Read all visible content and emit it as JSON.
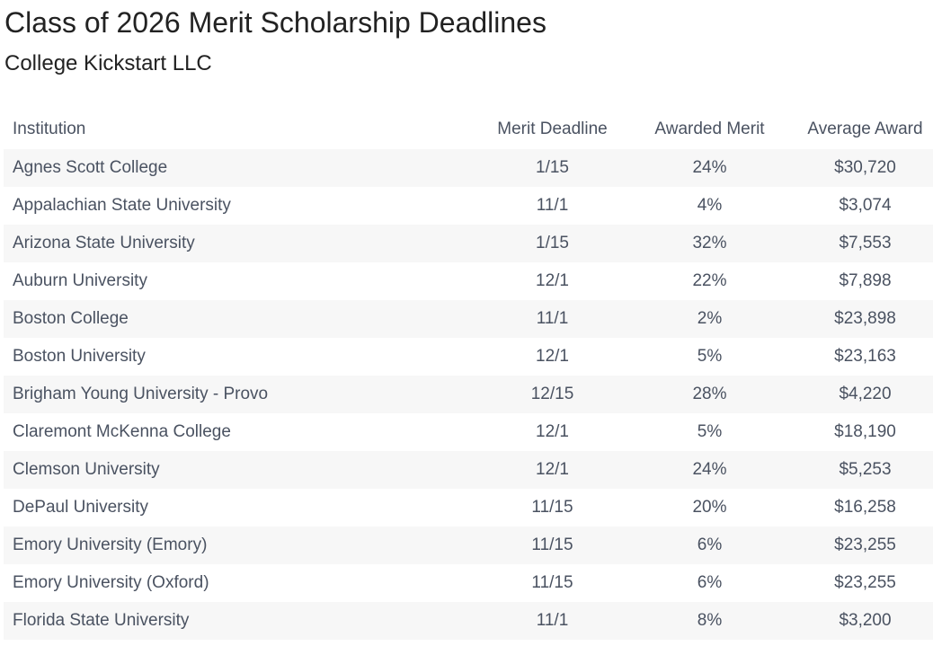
{
  "header": {
    "title": "Class of 2026 Merit Scholarship Deadlines",
    "subtitle": "College Kickstart LLC"
  },
  "table": {
    "columns": [
      "Institution",
      "Merit Deadline",
      "Awarded Merit",
      "Average Award"
    ],
    "rows": [
      {
        "institution": "Agnes Scott College",
        "deadline": "1/15",
        "awarded": "24%",
        "average": "$30,720"
      },
      {
        "institution": "Appalachian State University",
        "deadline": "11/1",
        "awarded": "4%",
        "average": "$3,074"
      },
      {
        "institution": "Arizona State University",
        "deadline": "1/15",
        "awarded": "32%",
        "average": "$7,553"
      },
      {
        "institution": "Auburn University",
        "deadline": "12/1",
        "awarded": "22%",
        "average": "$7,898"
      },
      {
        "institution": "Boston College",
        "deadline": "11/1",
        "awarded": "2%",
        "average": "$23,898"
      },
      {
        "institution": "Boston University",
        "deadline": "12/1",
        "awarded": "5%",
        "average": "$23,163"
      },
      {
        "institution": "Brigham Young University - Provo",
        "deadline": "12/15",
        "awarded": "28%",
        "average": "$4,220"
      },
      {
        "institution": "Claremont McKenna College",
        "deadline": "12/1",
        "awarded": "5%",
        "average": "$18,190"
      },
      {
        "institution": "Clemson University",
        "deadline": "12/1",
        "awarded": "24%",
        "average": "$5,253"
      },
      {
        "institution": "DePaul University",
        "deadline": "11/15",
        "awarded": "20%",
        "average": "$16,258"
      },
      {
        "institution": "Emory University (Emory)",
        "deadline": "11/15",
        "awarded": "6%",
        "average": "$23,255"
      },
      {
        "institution": "Emory University (Oxford)",
        "deadline": "11/15",
        "awarded": "6%",
        "average": "$23,255"
      },
      {
        "institution": "Florida State University",
        "deadline": "11/1",
        "awarded": "8%",
        "average": "$3,200"
      }
    ]
  }
}
